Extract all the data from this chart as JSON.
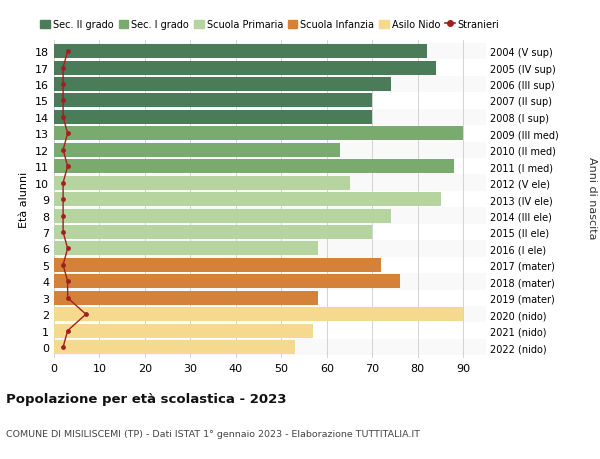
{
  "ages": [
    18,
    17,
    16,
    15,
    14,
    13,
    12,
    11,
    10,
    9,
    8,
    7,
    6,
    5,
    4,
    3,
    2,
    1,
    0
  ],
  "years": [
    "2004 (V sup)",
    "2005 (IV sup)",
    "2006 (III sup)",
    "2007 (II sup)",
    "2008 (I sup)",
    "2009 (III med)",
    "2010 (II med)",
    "2011 (I med)",
    "2012 (V ele)",
    "2013 (IV ele)",
    "2014 (III ele)",
    "2015 (II ele)",
    "2016 (I ele)",
    "2017 (mater)",
    "2018 (mater)",
    "2019 (mater)",
    "2020 (nido)",
    "2021 (nido)",
    "2022 (nido)"
  ],
  "bar_values": [
    82,
    84,
    74,
    70,
    70,
    90,
    63,
    88,
    65,
    85,
    74,
    70,
    58,
    72,
    76,
    58,
    90,
    57,
    53
  ],
  "bar_colors": [
    "#4a7c59",
    "#4a7c59",
    "#4a7c59",
    "#4a7c59",
    "#4a7c59",
    "#7aab6e",
    "#7aab6e",
    "#7aab6e",
    "#b5d4a0",
    "#b5d4a0",
    "#b5d4a0",
    "#b5d4a0",
    "#b5d4a0",
    "#d4813a",
    "#d4813a",
    "#d4813a",
    "#f5d98e",
    "#f5d98e",
    "#f5d98e"
  ],
  "stranieri_values": [
    3,
    2,
    2,
    2,
    2,
    3,
    2,
    3,
    2,
    2,
    2,
    2,
    3,
    2,
    3,
    3,
    7,
    3,
    2
  ],
  "stranieri_color": "#a02020",
  "legend_labels": [
    "Sec. II grado",
    "Sec. I grado",
    "Scuola Primaria",
    "Scuola Infanzia",
    "Asilo Nido",
    "Stranieri"
  ],
  "legend_colors": [
    "#4a7c59",
    "#7aab6e",
    "#b5d4a0",
    "#d4813a",
    "#f5d98e",
    "#a02020"
  ],
  "ylabel": "Età alunni",
  "right_label": "Anni di nascita",
  "title": "Popolazione per età scolastica - 2023",
  "subtitle": "COMUNE DI MISILISCEMI (TP) - Dati ISTAT 1° gennaio 2023 - Elaborazione TUTTITALIA.IT",
  "xlim": [
    0,
    95
  ],
  "xticks": [
    0,
    10,
    20,
    30,
    40,
    50,
    60,
    70,
    80,
    90
  ],
  "bg_color": "#ffffff",
  "grid_color": "#cccccc",
  "bar_height": 0.85,
  "row_bg_even": "#f5f5f5",
  "row_bg_odd": "#ffffff"
}
